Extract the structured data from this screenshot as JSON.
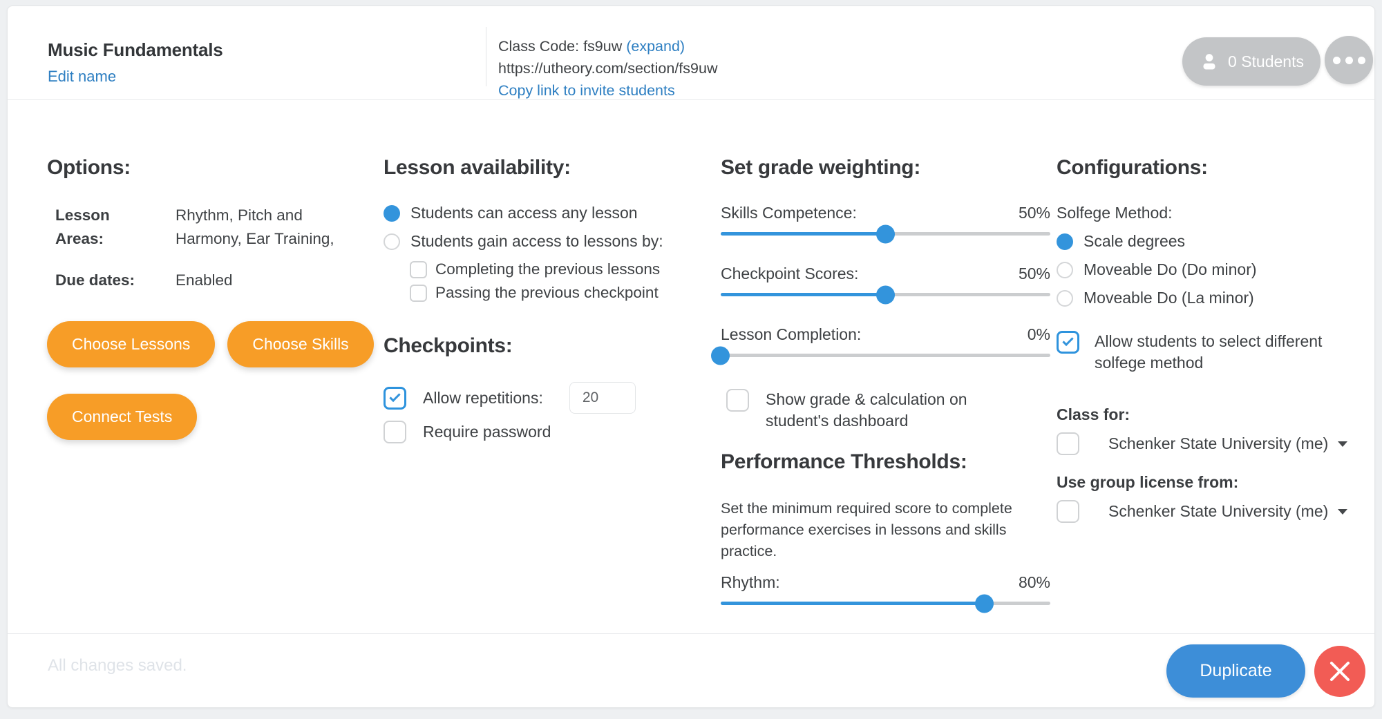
{
  "header": {
    "title": "Music Fundamentals",
    "edit_name": "Edit name",
    "class_code": "Class Code: fs9uw",
    "expand": "(expand)",
    "url": "https://utheory.com/section/fs9uw",
    "copy_link": "Copy link to invite students",
    "students": "0 Students"
  },
  "options": {
    "heading": "Options:",
    "lesson_areas_label": "Lesson Areas:",
    "lesson_areas_value": "Rhythm, Pitch and Harmony, Ear Training,",
    "due_dates_label": "Due dates:",
    "due_dates_value": "Enabled",
    "choose_lessons": "Choose Lessons",
    "choose_skills": "Choose Skills",
    "connect_tests": "Connect Tests"
  },
  "availability": {
    "heading": "Lesson availability:",
    "radio_any": "Students can access any lesson",
    "radio_gain": "Students gain access to lessons by:",
    "check_completing": "Completing the previous lessons",
    "check_passing": "Passing the previous checkpoint"
  },
  "checkpoints": {
    "heading": "Checkpoints:",
    "allow_repetitions": "Allow repetitions:",
    "repetitions_value": "20",
    "require_password": "Require password"
  },
  "grading": {
    "heading": "Set grade weighting:",
    "sliders": [
      {
        "label": "Skills Competence:",
        "value": "50%",
        "percent": "50%"
      },
      {
        "label": "Checkpoint Scores:",
        "value": "50%",
        "percent": "50%"
      },
      {
        "label": "Lesson Completion:",
        "value": "0%",
        "percent": "0%"
      }
    ],
    "show_grade": "Show grade & calculation on student's dashboard"
  },
  "thresholds": {
    "heading": "Performance Thresholds:",
    "description": "Set the minimum required score to complete performance exercises in lessons and skills practice.",
    "rhythm": {
      "label": "Rhythm:",
      "value": "80%",
      "percent": "80%"
    }
  },
  "configurations": {
    "heading": "Configurations:",
    "solfege_label": "Solfege Method:",
    "radio_scale": "Scale degrees",
    "radio_do_minor": "Moveable Do (Do minor)",
    "radio_la_minor": "Moveable Do (La minor)",
    "allow_select": "Allow students to select different solfege method",
    "class_for_label": "Class for:",
    "class_for_value": "Schenker State University (me)",
    "license_label": "Use group license from:",
    "license_value": "Schenker State University (me)"
  },
  "footer": {
    "status": "All changes saved.",
    "duplicate": "Duplicate"
  },
  "icons": {
    "students": "person-icon",
    "more": "ellipsis-icon",
    "checked": "checkmark-icon",
    "dropdown": "caret-down-icon",
    "close": "close-icon"
  },
  "colors": {
    "accent_blue": "#3394dc",
    "link_blue": "#2e7fc2",
    "orange": "#f79d27",
    "duplicate_blue": "#3d8ed8",
    "close_red": "#f25c55",
    "pill_gray": "#c3c5c7"
  }
}
